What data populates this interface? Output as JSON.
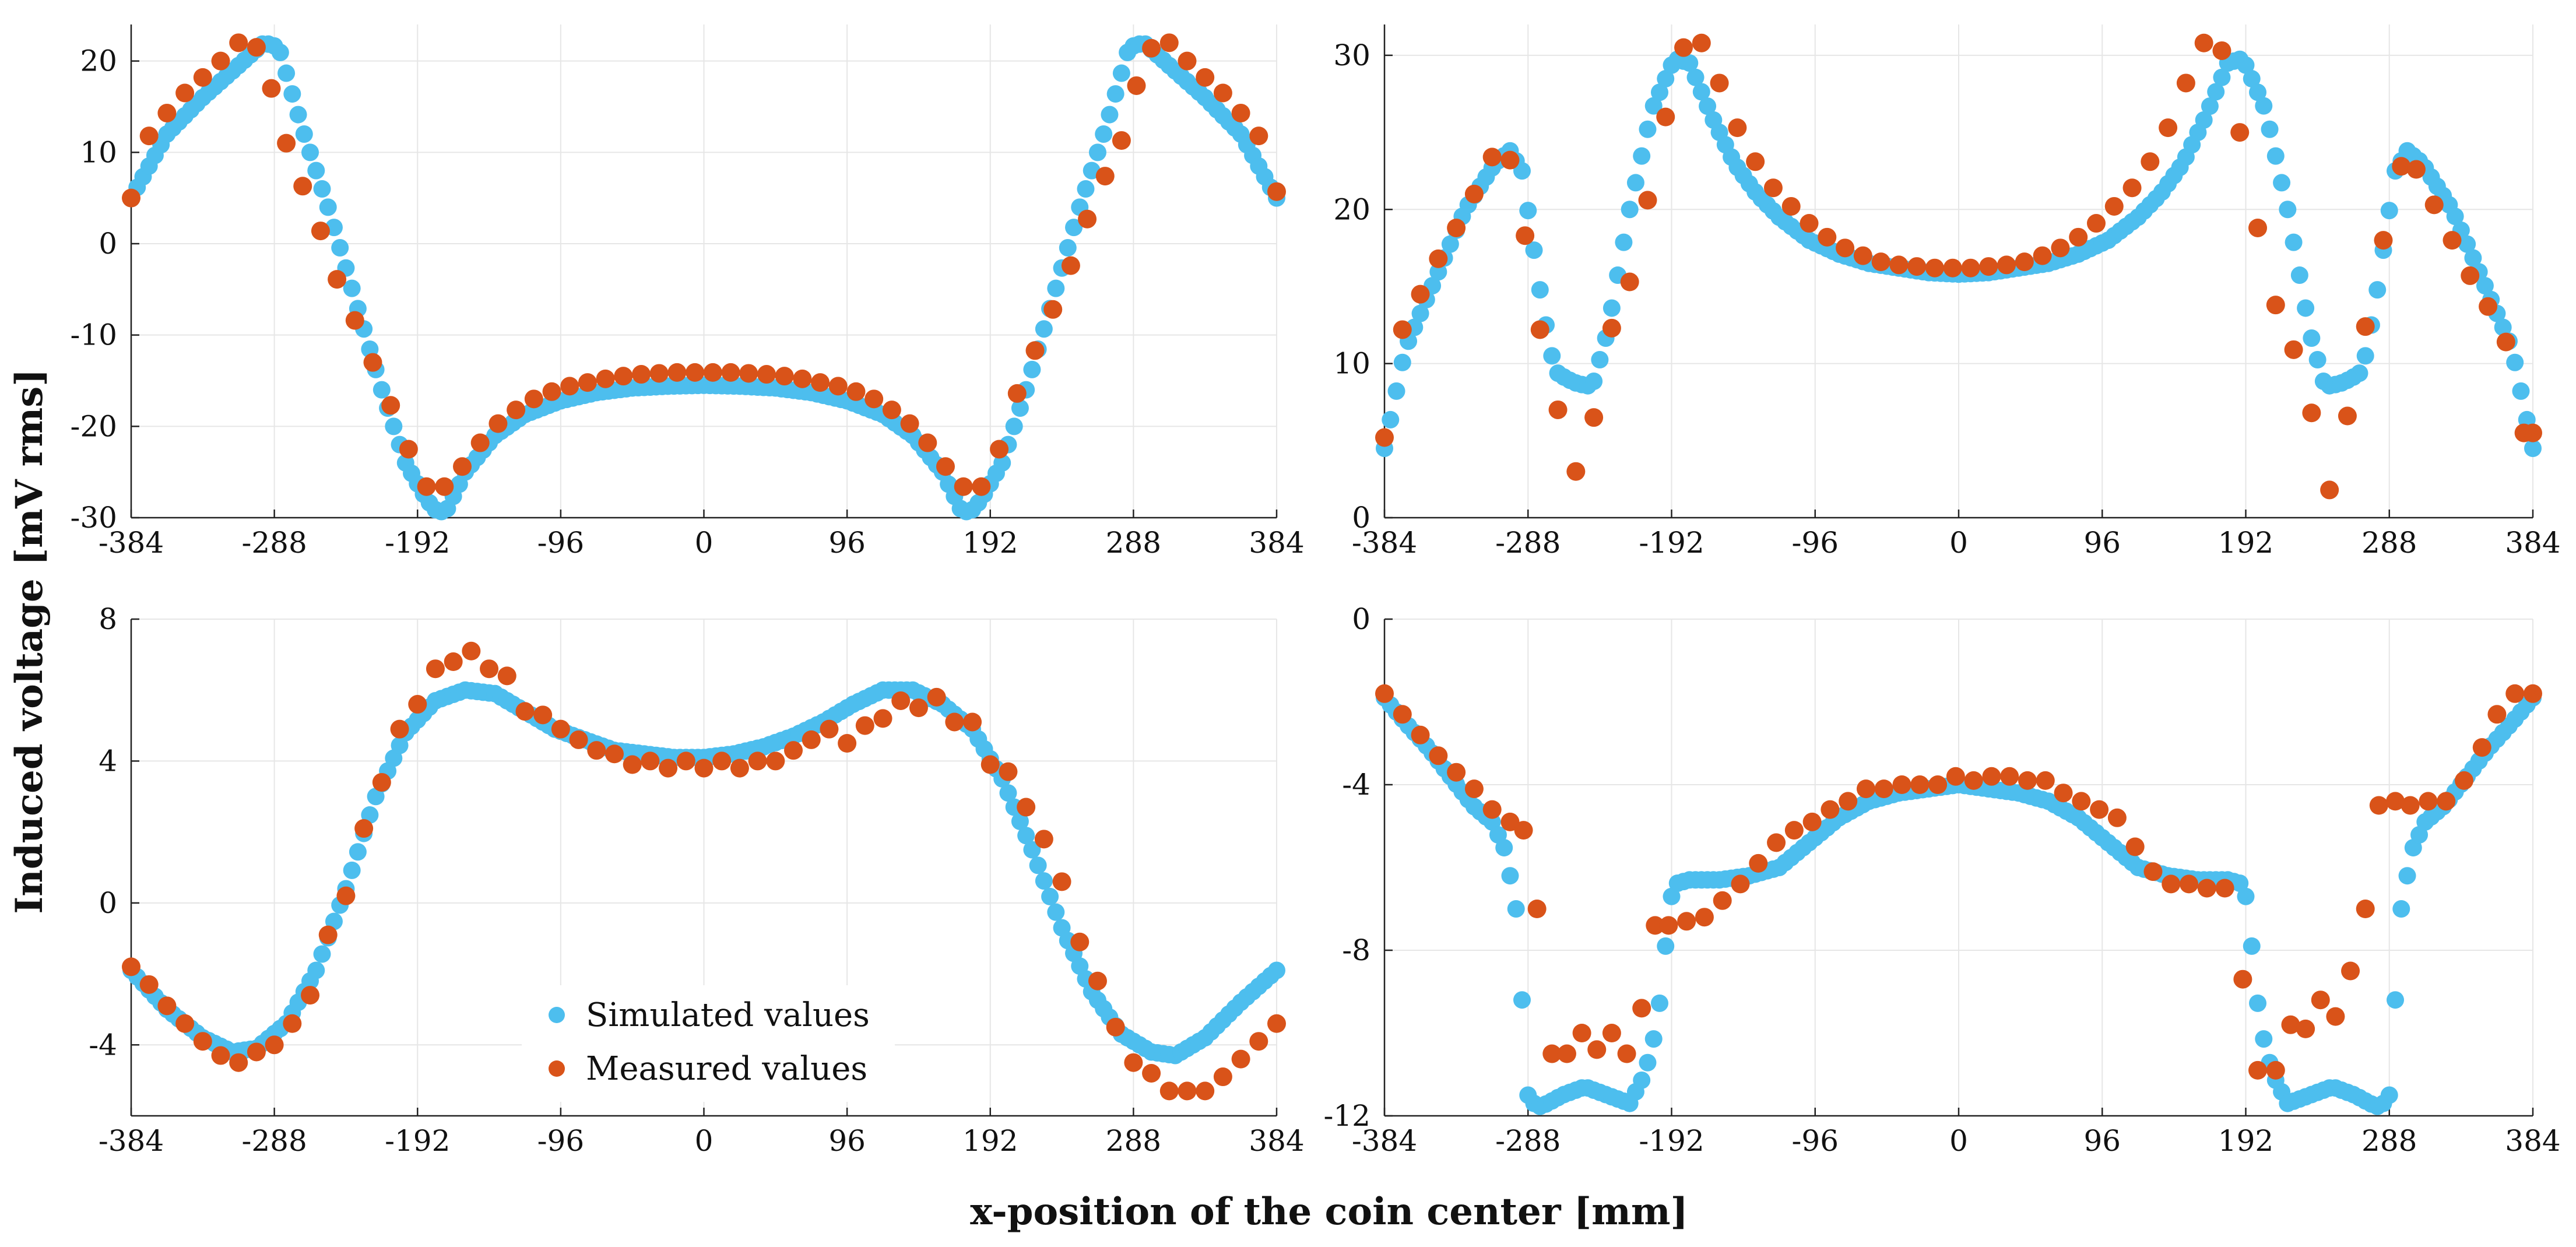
{
  "figure": {
    "ylabel": "Induced voltage [mV rms]",
    "xlabel": "x-position of the coin center [mm]"
  },
  "legend": {
    "simulated": "Simulated values",
    "measured": "Measured values",
    "placement": "bottom-center of bottom-left panel"
  },
  "colors": {
    "simulated": "#4dbeee",
    "measured": "#d95319",
    "grid": "#e6e6e6",
    "axis": "#222222"
  },
  "chart_data": [
    {
      "id": "top-left",
      "type": "scatter",
      "xlim": [
        -384,
        384
      ],
      "ylim": [
        -30,
        24
      ],
      "xticks": [
        -384,
        -288,
        -192,
        -96,
        0,
        96,
        192,
        288,
        384
      ],
      "yticks": [
        -30,
        -20,
        -10,
        0,
        10,
        20
      ],
      "series": [
        {
          "name": "Simulated values",
          "x": [
            -384,
            -360,
            -336,
            -312,
            -295,
            -285,
            -270,
            -252,
            -234,
            -216,
            -200,
            -186,
            -178,
            -172,
            -160,
            -140,
            -120,
            -96,
            -72,
            -48,
            -24,
            0,
            24,
            48,
            72,
            96,
            120,
            140,
            160,
            172,
            178,
            186,
            200,
            216,
            234,
            252,
            270,
            285,
            295,
            312,
            336,
            360,
            384
          ],
          "y": [
            5,
            12,
            16,
            19.5,
            22,
            21.5,
            13,
            4,
            -6,
            -16,
            -24,
            -28,
            -29.5,
            -29,
            -25,
            -21,
            -18.7,
            -17.2,
            -16.3,
            -15.8,
            -15.6,
            -15.5,
            -15.6,
            -15.8,
            -16.3,
            -17.2,
            -18.7,
            -21,
            -25,
            -29,
            -29.5,
            -28,
            -24,
            -16,
            -6,
            4,
            13,
            21.5,
            22,
            19.5,
            16,
            12,
            5
          ]
        },
        {
          "name": "Measured values",
          "x": [
            -384,
            -372,
            -360,
            -348,
            -336,
            -324,
            -312,
            -300,
            -290,
            -280,
            -269,
            -257,
            -246,
            -234,
            -222,
            -210,
            -198,
            -186,
            -174,
            -162,
            -150,
            -138,
            -126,
            -114,
            -102,
            -90,
            -78,
            -66,
            -54,
            -42,
            -30,
            -18,
            -6,
            6,
            18,
            30,
            42,
            54,
            66,
            78,
            90,
            102,
            114,
            126,
            138,
            150,
            162,
            174,
            186,
            198,
            210,
            222,
            234,
            246,
            257,
            269,
            280,
            290,
            300,
            312,
            324,
            336,
            348,
            360,
            372,
            384
          ],
          "y": [
            5,
            11.8,
            14.3,
            16.5,
            18.2,
            20,
            22,
            21.5,
            17,
            11,
            6.3,
            1.4,
            -3.9,
            -8.4,
            -13,
            -17.7,
            -22.5,
            -26.6,
            -26.6,
            -24.4,
            -21.8,
            -19.7,
            -18.2,
            -17,
            -16.2,
            -15.6,
            -15.2,
            -14.8,
            -14.5,
            -14.3,
            -14.2,
            -14.1,
            -14.1,
            -14.1,
            -14.1,
            -14.2,
            -14.3,
            -14.5,
            -14.8,
            -15.2,
            -15.6,
            -16.2,
            -17,
            -18.2,
            -19.7,
            -21.8,
            -24.4,
            -26.6,
            -26.6,
            -22.5,
            -16.4,
            -11.7,
            -7.2,
            -2.4,
            2.7,
            7.4,
            11.3,
            17.3,
            21.4,
            22,
            20,
            18.2,
            16.5,
            14.3,
            11.8,
            5.7
          ]
        }
      ]
    },
    {
      "id": "top-right",
      "type": "scatter",
      "xlim": [
        -384,
        384
      ],
      "ylim": [
        0,
        32
      ],
      "xticks": [
        -384,
        -288,
        -192,
        -96,
        0,
        96,
        192,
        288,
        384
      ],
      "yticks": [
        0,
        10,
        20,
        30
      ],
      "series": [
        {
          "name": "Simulated values",
          "x": [
            -384,
            -370,
            -350,
            -330,
            -310,
            -300,
            -292,
            -285,
            -278,
            -270,
            -262,
            -255,
            -245,
            -235,
            -220,
            -205,
            -190,
            -180,
            -165,
            -150,
            -135,
            -120,
            -100,
            -80,
            -60,
            -40,
            -20,
            0,
            20,
            40,
            60,
            80,
            100,
            120,
            135,
            150,
            165,
            180,
            190,
            205,
            220,
            235,
            245,
            255,
            262,
            270,
            278,
            285,
            292,
            300,
            310,
            330,
            350,
            370,
            384
          ],
          "y": [
            4.5,
            11,
            15.5,
            20,
            23,
            23.8,
            22.5,
            18,
            13.5,
            9.5,
            9,
            8.7,
            8.5,
            12,
            20,
            26.5,
            29.8,
            29.5,
            26,
            23,
            21,
            19.5,
            18,
            17.1,
            16.5,
            16.2,
            15.9,
            15.8,
            15.9,
            16.2,
            16.5,
            17.1,
            18,
            19.5,
            21,
            23,
            26,
            29.5,
            29.8,
            26.5,
            20,
            12,
            8.5,
            8.7,
            9,
            9.5,
            13.5,
            18,
            22.5,
            23.8,
            23,
            20,
            15.5,
            11,
            4.5
          ]
        },
        {
          "name": "Measured values",
          "x": [
            -384,
            -372,
            -360,
            -348,
            -336,
            -324,
            -312,
            -300,
            -290,
            -280,
            -268,
            -256,
            -244,
            -232,
            -220,
            -208,
            -196,
            -184,
            -172,
            -160,
            -148,
            -136,
            -124,
            -112,
            -100,
            -88,
            -76,
            -64,
            -52,
            -40,
            -28,
            -16,
            -4,
            8,
            20,
            32,
            44,
            56,
            68,
            80,
            92,
            104,
            116,
            128,
            140,
            152,
            164,
            176,
            188,
            200,
            212,
            224,
            236,
            248,
            260,
            272,
            284,
            296,
            306,
            318,
            330,
            342,
            354,
            366,
            378,
            384
          ],
          "y": [
            5.2,
            12.2,
            14.5,
            16.8,
            18.8,
            21,
            23.4,
            23.2,
            18.3,
            12.2,
            7,
            3,
            6.5,
            12.3,
            15.3,
            20.6,
            26,
            30.5,
            30.8,
            28.2,
            25.3,
            23.1,
            21.4,
            20.2,
            19.1,
            18.2,
            17.5,
            17,
            16.6,
            16.4,
            16.3,
            16.2,
            16.2,
            16.2,
            16.3,
            16.4,
            16.6,
            17,
            17.5,
            18.2,
            19.1,
            20.2,
            21.4,
            23.1,
            25.3,
            28.2,
            30.8,
            30.3,
            25,
            18.8,
            13.8,
            10.9,
            6.8,
            1.8,
            6.6,
            12.4,
            18,
            22.8,
            22.6,
            20.3,
            18,
            15.7,
            13.7,
            11.4,
            5.5,
            5.5
          ]
        }
      ]
    },
    {
      "id": "bottom-left",
      "type": "scatter",
      "xlim": [
        -384,
        384
      ],
      "ylim": [
        -6,
        8
      ],
      "xticks": [
        -384,
        -288,
        -192,
        -96,
        0,
        96,
        192,
        288,
        384
      ],
      "yticks": [
        -4,
        0,
        4,
        8
      ],
      "series": [
        {
          "name": "Simulated values",
          "x": [
            -384,
            -360,
            -336,
            -316,
            -300,
            -280,
            -260,
            -240,
            -220,
            -200,
            -180,
            -160,
            -140,
            -120,
            -100,
            -80,
            -60,
            -40,
            -20,
            0,
            20,
            40,
            60,
            80,
            100,
            120,
            140,
            160,
            180,
            200,
            220,
            240,
            260,
            280,
            300,
            316,
            336,
            360,
            384
          ],
          "y": [
            -1.9,
            -3,
            -3.8,
            -4.2,
            -4.1,
            -3.4,
            -1.9,
            0.4,
            3,
            4.8,
            5.7,
            6,
            5.9,
            5.4,
            4.9,
            4.6,
            4.3,
            4.2,
            4.1,
            4.1,
            4.2,
            4.4,
            4.7,
            5.1,
            5.6,
            6,
            6,
            5.6,
            4.9,
            3.5,
            1.5,
            -0.7,
            -2.5,
            -3.7,
            -4.2,
            -4.3,
            -3.8,
            -2.8,
            -1.9
          ]
        },
        {
          "name": "Measured values",
          "x": [
            -384,
            -372,
            -360,
            -348,
            -336,
            -324,
            -312,
            -300,
            -288,
            -276,
            -264,
            -252,
            -240,
            -228,
            -216,
            -204,
            -192,
            -180,
            -168,
            -156,
            -144,
            -132,
            -120,
            -108,
            -96,
            -84,
            -72,
            -60,
            -48,
            -36,
            -24,
            -12,
            0,
            12,
            24,
            36,
            48,
            60,
            72,
            84,
            96,
            108,
            120,
            132,
            144,
            156,
            168,
            180,
            192,
            204,
            216,
            228,
            240,
            252,
            264,
            276,
            288,
            300,
            312,
            324,
            336,
            348,
            360,
            372,
            384
          ],
          "y": [
            -1.8,
            -2.3,
            -2.9,
            -3.4,
            -3.9,
            -4.3,
            -4.5,
            -4.2,
            -4,
            -3.4,
            -2.6,
            -0.9,
            0.2,
            2.1,
            3.4,
            4.9,
            5.6,
            6.6,
            6.8,
            7.1,
            6.6,
            6.4,
            5.4,
            5.3,
            4.9,
            4.6,
            4.3,
            4.2,
            3.9,
            4,
            3.8,
            4,
            3.8,
            4,
            3.8,
            4,
            4,
            4.3,
            4.6,
            4.9,
            4.5,
            5,
            5.2,
            5.7,
            5.5,
            5.8,
            5.1,
            5.1,
            3.9,
            3.7,
            2.7,
            1.8,
            0.6,
            -1.1,
            -2.2,
            -3.5,
            -4.5,
            -4.8,
            -5.3,
            -5.3,
            -5.3,
            -4.9,
            -4.4,
            -3.9,
            -3.4
          ]
        }
      ]
    },
    {
      "id": "bottom-right",
      "type": "scatter",
      "xlim": [
        -384,
        384
      ],
      "ylim": [
        -12,
        0
      ],
      "xticks": [
        -384,
        -288,
        -192,
        -96,
        0,
        96,
        192,
        288,
        384
      ],
      "yticks": [
        -12,
        -8,
        -4,
        0
      ],
      "series": [
        {
          "name": "Simulated values",
          "x": [
            -384,
            -370,
            -355,
            -340,
            -325,
            -312,
            -303,
            -296,
            -292,
            -288,
            -282,
            -275,
            -265,
            -250,
            -235,
            -220,
            -210,
            -203,
            -198,
            -194,
            -190,
            -180,
            -160,
            -140,
            -120,
            -100,
            -80,
            -60,
            -40,
            -20,
            0,
            20,
            40,
            60,
            80,
            100,
            120,
            140,
            160,
            180,
            190,
            194,
            198,
            203,
            210,
            220,
            235,
            250,
            265,
            275,
            282,
            288,
            292,
            296,
            303,
            312,
            325,
            340,
            355,
            370,
            384
          ],
          "y": [
            -1.9,
            -2.5,
            -3.1,
            -3.8,
            -4.5,
            -4.9,
            -5.6,
            -7,
            -9.2,
            -11.5,
            -11.8,
            -11.7,
            -11.5,
            -11.3,
            -11.5,
            -11.7,
            -11,
            -10,
            -8.8,
            -7,
            -6.4,
            -6.3,
            -6.3,
            -6.2,
            -6,
            -5.4,
            -4.8,
            -4.4,
            -4.2,
            -4.1,
            -4,
            -4.1,
            -4.2,
            -4.4,
            -4.8,
            -5.4,
            -6,
            -6.2,
            -6.3,
            -6.3,
            -6.4,
            -7,
            -8.8,
            -10,
            -11,
            -11.7,
            -11.5,
            -11.3,
            -11.5,
            -11.7,
            -11.8,
            -11.5,
            -9.2,
            -7,
            -5.6,
            -4.9,
            -4.5,
            -3.8,
            -3.1,
            -2.5,
            -1.9
          ]
        },
        {
          "name": "Measured values",
          "x": [
            -384,
            -372,
            -360,
            -348,
            -336,
            -324,
            -312,
            -300,
            -291,
            -282,
            -272,
            -262,
            -252,
            -242,
            -232,
            -222,
            -212,
            -203,
            -194,
            -182,
            -170,
            -158,
            -146,
            -134,
            -122,
            -110,
            -98,
            -86,
            -74,
            -62,
            -50,
            -38,
            -26,
            -14,
            -2,
            10,
            22,
            34,
            46,
            58,
            70,
            82,
            94,
            106,
            118,
            130,
            142,
            154,
            166,
            178,
            190,
            200,
            212,
            222,
            232,
            242,
            252,
            262,
            272,
            281,
            292,
            302,
            314,
            326,
            338,
            350,
            360,
            372,
            384
          ],
          "y": [
            -1.8,
            -2.3,
            -2.8,
            -3.3,
            -3.7,
            -4.1,
            -4.6,
            -4.9,
            -5.1,
            -7,
            -10.5,
            -10.5,
            -10,
            -10.4,
            -10,
            -10.5,
            -9.4,
            -7.4,
            -7.4,
            -7.3,
            -7.2,
            -6.8,
            -6.4,
            -5.9,
            -5.4,
            -5.1,
            -4.9,
            -4.6,
            -4.4,
            -4.1,
            -4.1,
            -4,
            -4,
            -4,
            -3.8,
            -3.9,
            -3.8,
            -3.8,
            -3.9,
            -3.9,
            -4.2,
            -4.4,
            -4.6,
            -4.8,
            -5.5,
            -6.1,
            -6.4,
            -6.4,
            -6.5,
            -6.5,
            -8.7,
            -10.9,
            -10.9,
            -9.8,
            -9.9,
            -9.2,
            -9.6,
            -8.5,
            -7,
            -4.5,
            -4.4,
            -4.5,
            -4.4,
            -4.4,
            -3.9,
            -3.1,
            -2.3,
            -1.8,
            -1.8
          ]
        }
      ]
    }
  ]
}
